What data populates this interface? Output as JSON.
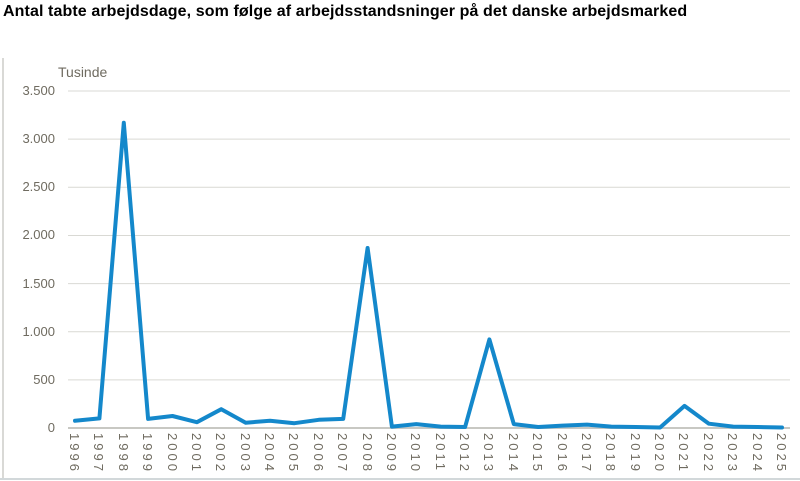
{
  "title": "Antal tabte arbejdsdage, som følge af arbejdsstandsninger på det danske arbejdsmarked",
  "chart_data": {
    "type": "line",
    "title": "Antal tabte arbejdsdage, som følge af arbejdsstandsninger på det danske arbejdsmarked",
    "unit_label": "Tusinde",
    "xlabel": "",
    "ylabel": "Tusinde",
    "ylim": [
      0,
      3500
    ],
    "y_tick_step": 500,
    "y_tick_labels": [
      "0",
      "500",
      "1.000",
      "1.500",
      "2.000",
      "2.500",
      "3.000",
      "3.500"
    ],
    "grid": true,
    "legend_position": "none",
    "categories": [
      "1996",
      "1997",
      "1998",
      "1999",
      "2000",
      "2001",
      "2002",
      "2003",
      "2004",
      "2005",
      "2006",
      "2007",
      "2008",
      "2009",
      "2010",
      "2011",
      "2012",
      "2013",
      "2014",
      "2015",
      "2016",
      "2017",
      "2018",
      "2019",
      "2020",
      "2021",
      "2022",
      "2023",
      "2024",
      "2025"
    ],
    "series": [
      {
        "name": "Antal tabte arbejdsdage",
        "values": [
          75,
          100,
          3170,
          95,
          125,
          60,
          195,
          55,
          75,
          50,
          85,
          95,
          1870,
          15,
          40,
          15,
          10,
          920,
          40,
          10,
          25,
          35,
          15,
          10,
          5,
          230,
          45,
          15,
          10,
          5
        ]
      }
    ]
  },
  "colors": {
    "line": "#1488cb",
    "grid": "#d9d9d4",
    "zero_line": "#c8c8c3",
    "axis_text": "#6f6b60",
    "title_text": "#000000",
    "frame_border": "#d2d8da"
  }
}
